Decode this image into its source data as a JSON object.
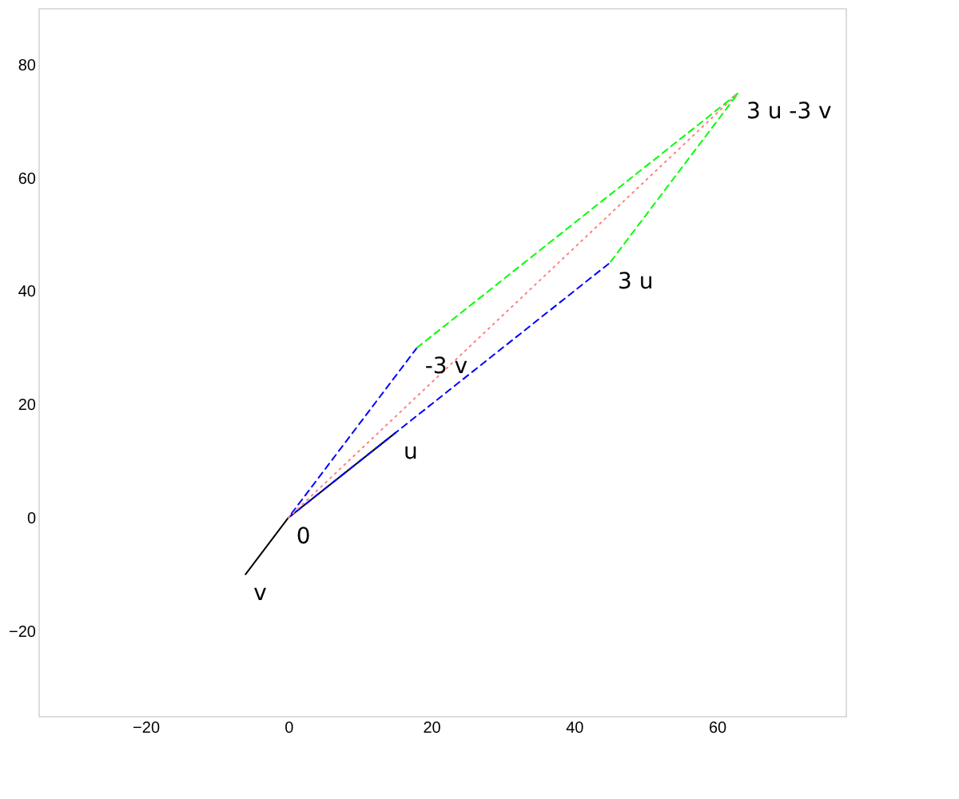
{
  "chart_data": {
    "type": "line",
    "xlim": [
      -35,
      78
    ],
    "ylim": [
      -35,
      90
    ],
    "xticks": [
      -20,
      0,
      20,
      40,
      60
    ],
    "yticks": [
      -20,
      0,
      20,
      40,
      60,
      80
    ],
    "grid": false,
    "marker": "none",
    "series": [
      {
        "color": "#000000",
        "line_style": "solid",
        "x": [
          -6,
          0,
          15
        ],
        "values": [
          -10,
          0,
          15
        ]
      },
      {
        "color": "#0000ff",
        "line_style": "dashed",
        "x": [
          18,
          0,
          45
        ],
        "values": [
          30,
          0,
          45
        ]
      },
      {
        "color": "#00ff00",
        "line_style": "dashed",
        "x": [
          18,
          63,
          45
        ],
        "values": [
          30,
          75,
          45
        ]
      },
      {
        "color": "#ff8080",
        "line_style": "dotted",
        "x": [
          0,
          63
        ],
        "values": [
          0,
          75
        ]
      }
    ],
    "annotations": [
      {
        "text": "0",
        "x": 0,
        "y": 0
      },
      {
        "text": "u",
        "x": 15,
        "y": 15
      },
      {
        "text": "v",
        "x": -6,
        "y": -10
      },
      {
        "text": "-3 v",
        "x": 18,
        "y": 30
      },
      {
        "text": "3 u",
        "x": 45,
        "y": 45
      },
      {
        "text": "3 u -3 v",
        "x": 63,
        "y": 75
      }
    ]
  }
}
